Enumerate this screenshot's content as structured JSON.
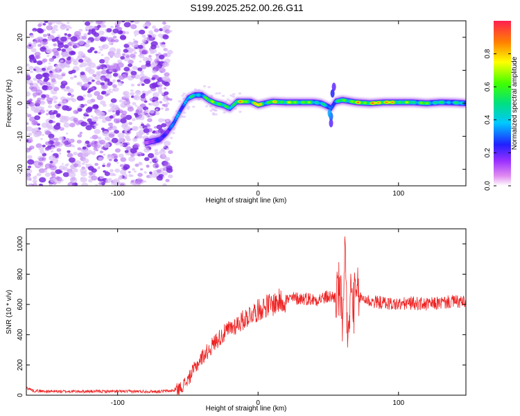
{
  "title": "S199.2025.252.00.26.G11",
  "chart_data": [
    {
      "type": "heatmap",
      "name": "spectrogram",
      "xlabel": "Height of straight line (km)",
      "ylabel": "Frequency (Hz)",
      "xlim": [
        -165,
        148
      ],
      "ylim": [
        -25,
        25
      ],
      "xticks": [
        -100,
        0,
        100
      ],
      "yticks": [
        -20,
        -10,
        0,
        10,
        20
      ],
      "colorbar": {
        "label": "Normalized spectral amplitude",
        "range": [
          0,
          1
        ],
        "ticks": [
          "0.0",
          "0.2",
          "0.4",
          "0.6",
          "0.8"
        ],
        "tick_values": [
          0,
          0.2,
          0.4,
          0.6,
          0.8
        ]
      },
      "ridge": {
        "height_km": [
          -80,
          -75,
          -70,
          -65,
          -60,
          -55,
          -50,
          -45,
          -40,
          -35,
          -30,
          -25,
          -20,
          -15,
          -10,
          -5,
          0,
          5,
          10,
          20,
          30,
          40,
          45,
          50,
          52,
          55,
          60,
          70,
          80,
          90,
          100,
          110,
          120,
          130,
          140,
          148
        ],
        "frequency_hz": [
          -12,
          -11.5,
          -11,
          -9,
          -6,
          -2,
          1.5,
          2.5,
          2.5,
          1,
          0,
          -0.5,
          -1.5,
          0.5,
          0.5,
          0.5,
          -0.5,
          0,
          0.5,
          0.3,
          0.3,
          0.3,
          0,
          -1,
          -1.5,
          0.5,
          1,
          0.3,
          0,
          0.3,
          0.3,
          0.3,
          0,
          0.3,
          0.2,
          0
        ],
        "amplitude": [
          0.15,
          0.2,
          0.25,
          0.3,
          0.35,
          0.4,
          0.45,
          0.5,
          0.5,
          0.6,
          0.85,
          0.5,
          0.6,
          0.7,
          0.85,
          0.6,
          0.9,
          0.6,
          0.75,
          0.7,
          0.7,
          0.6,
          0.5,
          0.4,
          0.35,
          0.5,
          0.6,
          0.8,
          0.8,
          0.95,
          0.7,
          0.6,
          0.65,
          0.5,
          0.5,
          0.45
        ]
      },
      "noise_region_km": [
        -165,
        -62
      ]
    },
    {
      "type": "line",
      "name": "snr",
      "xlabel": "Height of straight line (km)",
      "ylabel": "SNR (10 * v/v)",
      "xlim": [
        -165,
        148
      ],
      "ylim": [
        0,
        1100
      ],
      "xticks": [
        -100,
        0,
        100
      ],
      "yticks": [
        0,
        200,
        400,
        600,
        800,
        1000
      ],
      "color": "#ee2222",
      "series": [
        {
          "name": "SNR",
          "x": [
            -165,
            -160,
            -150,
            -140,
            -130,
            -120,
            -110,
            -100,
            -90,
            -80,
            -70,
            -60,
            -55,
            -50,
            -45,
            -40,
            -35,
            -30,
            -25,
            -20,
            -15,
            -10,
            -5,
            0,
            5,
            10,
            15,
            20,
            25,
            30,
            35,
            40,
            45,
            50,
            55,
            58,
            60,
            62,
            64,
            66,
            68,
            70,
            75,
            80,
            90,
            100,
            110,
            120,
            130,
            140,
            148
          ],
          "y": [
            50,
            30,
            25,
            25,
            25,
            25,
            25,
            25,
            25,
            25,
            25,
            30,
            50,
            100,
            180,
            250,
            300,
            360,
            400,
            440,
            470,
            500,
            540,
            560,
            590,
            600,
            620,
            630,
            640,
            640,
            640,
            630,
            640,
            650,
            650,
            700,
            500,
            900,
            350,
            700,
            600,
            650,
            640,
            620,
            610,
            600,
            610,
            600,
            610,
            620,
            610
          ]
        }
      ]
    }
  ],
  "colors": {
    "line": "#ee2222",
    "noise": "#7a2be0"
  }
}
